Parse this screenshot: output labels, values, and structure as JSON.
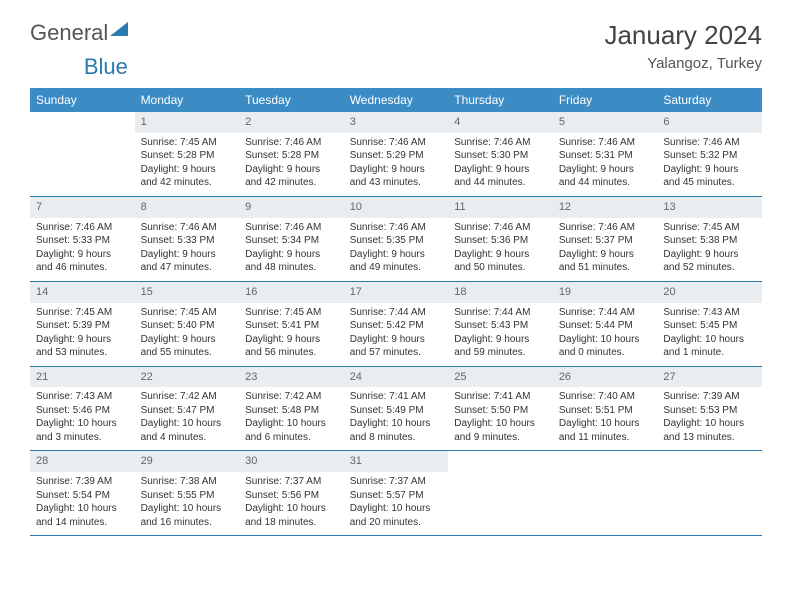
{
  "brand": {
    "part1": "General",
    "part2": "Blue"
  },
  "title": "January 2024",
  "location": "Yalangoz, Turkey",
  "colors": {
    "header_bg": "#3b8bc4",
    "header_text": "#ffffff",
    "daynum_bg": "#e9edf0",
    "daynum_text": "#666666",
    "body_text": "#333333",
    "row_rule": "#2a7ab0",
    "page_bg": "#ffffff",
    "brand_blue": "#2a7ab0"
  },
  "weekdays": [
    "Sunday",
    "Monday",
    "Tuesday",
    "Wednesday",
    "Thursday",
    "Friday",
    "Saturday"
  ],
  "weeks": [
    [
      {
        "day": "",
        "sunrise": "",
        "sunset": "",
        "daylight": ""
      },
      {
        "day": "1",
        "sunrise": "Sunrise: 7:45 AM",
        "sunset": "Sunset: 5:28 PM",
        "daylight": "Daylight: 9 hours and 42 minutes."
      },
      {
        "day": "2",
        "sunrise": "Sunrise: 7:46 AM",
        "sunset": "Sunset: 5:28 PM",
        "daylight": "Daylight: 9 hours and 42 minutes."
      },
      {
        "day": "3",
        "sunrise": "Sunrise: 7:46 AM",
        "sunset": "Sunset: 5:29 PM",
        "daylight": "Daylight: 9 hours and 43 minutes."
      },
      {
        "day": "4",
        "sunrise": "Sunrise: 7:46 AM",
        "sunset": "Sunset: 5:30 PM",
        "daylight": "Daylight: 9 hours and 44 minutes."
      },
      {
        "day": "5",
        "sunrise": "Sunrise: 7:46 AM",
        "sunset": "Sunset: 5:31 PM",
        "daylight": "Daylight: 9 hours and 44 minutes."
      },
      {
        "day": "6",
        "sunrise": "Sunrise: 7:46 AM",
        "sunset": "Sunset: 5:32 PM",
        "daylight": "Daylight: 9 hours and 45 minutes."
      }
    ],
    [
      {
        "day": "7",
        "sunrise": "Sunrise: 7:46 AM",
        "sunset": "Sunset: 5:33 PM",
        "daylight": "Daylight: 9 hours and 46 minutes."
      },
      {
        "day": "8",
        "sunrise": "Sunrise: 7:46 AM",
        "sunset": "Sunset: 5:33 PM",
        "daylight": "Daylight: 9 hours and 47 minutes."
      },
      {
        "day": "9",
        "sunrise": "Sunrise: 7:46 AM",
        "sunset": "Sunset: 5:34 PM",
        "daylight": "Daylight: 9 hours and 48 minutes."
      },
      {
        "day": "10",
        "sunrise": "Sunrise: 7:46 AM",
        "sunset": "Sunset: 5:35 PM",
        "daylight": "Daylight: 9 hours and 49 minutes."
      },
      {
        "day": "11",
        "sunrise": "Sunrise: 7:46 AM",
        "sunset": "Sunset: 5:36 PM",
        "daylight": "Daylight: 9 hours and 50 minutes."
      },
      {
        "day": "12",
        "sunrise": "Sunrise: 7:46 AM",
        "sunset": "Sunset: 5:37 PM",
        "daylight": "Daylight: 9 hours and 51 minutes."
      },
      {
        "day": "13",
        "sunrise": "Sunrise: 7:45 AM",
        "sunset": "Sunset: 5:38 PM",
        "daylight": "Daylight: 9 hours and 52 minutes."
      }
    ],
    [
      {
        "day": "14",
        "sunrise": "Sunrise: 7:45 AM",
        "sunset": "Sunset: 5:39 PM",
        "daylight": "Daylight: 9 hours and 53 minutes."
      },
      {
        "day": "15",
        "sunrise": "Sunrise: 7:45 AM",
        "sunset": "Sunset: 5:40 PM",
        "daylight": "Daylight: 9 hours and 55 minutes."
      },
      {
        "day": "16",
        "sunrise": "Sunrise: 7:45 AM",
        "sunset": "Sunset: 5:41 PM",
        "daylight": "Daylight: 9 hours and 56 minutes."
      },
      {
        "day": "17",
        "sunrise": "Sunrise: 7:44 AM",
        "sunset": "Sunset: 5:42 PM",
        "daylight": "Daylight: 9 hours and 57 minutes."
      },
      {
        "day": "18",
        "sunrise": "Sunrise: 7:44 AM",
        "sunset": "Sunset: 5:43 PM",
        "daylight": "Daylight: 9 hours and 59 minutes."
      },
      {
        "day": "19",
        "sunrise": "Sunrise: 7:44 AM",
        "sunset": "Sunset: 5:44 PM",
        "daylight": "Daylight: 10 hours and 0 minutes."
      },
      {
        "day": "20",
        "sunrise": "Sunrise: 7:43 AM",
        "sunset": "Sunset: 5:45 PM",
        "daylight": "Daylight: 10 hours and 1 minute."
      }
    ],
    [
      {
        "day": "21",
        "sunrise": "Sunrise: 7:43 AM",
        "sunset": "Sunset: 5:46 PM",
        "daylight": "Daylight: 10 hours and 3 minutes."
      },
      {
        "day": "22",
        "sunrise": "Sunrise: 7:42 AM",
        "sunset": "Sunset: 5:47 PM",
        "daylight": "Daylight: 10 hours and 4 minutes."
      },
      {
        "day": "23",
        "sunrise": "Sunrise: 7:42 AM",
        "sunset": "Sunset: 5:48 PM",
        "daylight": "Daylight: 10 hours and 6 minutes."
      },
      {
        "day": "24",
        "sunrise": "Sunrise: 7:41 AM",
        "sunset": "Sunset: 5:49 PM",
        "daylight": "Daylight: 10 hours and 8 minutes."
      },
      {
        "day": "25",
        "sunrise": "Sunrise: 7:41 AM",
        "sunset": "Sunset: 5:50 PM",
        "daylight": "Daylight: 10 hours and 9 minutes."
      },
      {
        "day": "26",
        "sunrise": "Sunrise: 7:40 AM",
        "sunset": "Sunset: 5:51 PM",
        "daylight": "Daylight: 10 hours and 11 minutes."
      },
      {
        "day": "27",
        "sunrise": "Sunrise: 7:39 AM",
        "sunset": "Sunset: 5:53 PM",
        "daylight": "Daylight: 10 hours and 13 minutes."
      }
    ],
    [
      {
        "day": "28",
        "sunrise": "Sunrise: 7:39 AM",
        "sunset": "Sunset: 5:54 PM",
        "daylight": "Daylight: 10 hours and 14 minutes."
      },
      {
        "day": "29",
        "sunrise": "Sunrise: 7:38 AM",
        "sunset": "Sunset: 5:55 PM",
        "daylight": "Daylight: 10 hours and 16 minutes."
      },
      {
        "day": "30",
        "sunrise": "Sunrise: 7:37 AM",
        "sunset": "Sunset: 5:56 PM",
        "daylight": "Daylight: 10 hours and 18 minutes."
      },
      {
        "day": "31",
        "sunrise": "Sunrise: 7:37 AM",
        "sunset": "Sunset: 5:57 PM",
        "daylight": "Daylight: 10 hours and 20 minutes."
      },
      {
        "day": "",
        "sunrise": "",
        "sunset": "",
        "daylight": ""
      },
      {
        "day": "",
        "sunrise": "",
        "sunset": "",
        "daylight": ""
      },
      {
        "day": "",
        "sunrise": "",
        "sunset": "",
        "daylight": ""
      }
    ]
  ]
}
